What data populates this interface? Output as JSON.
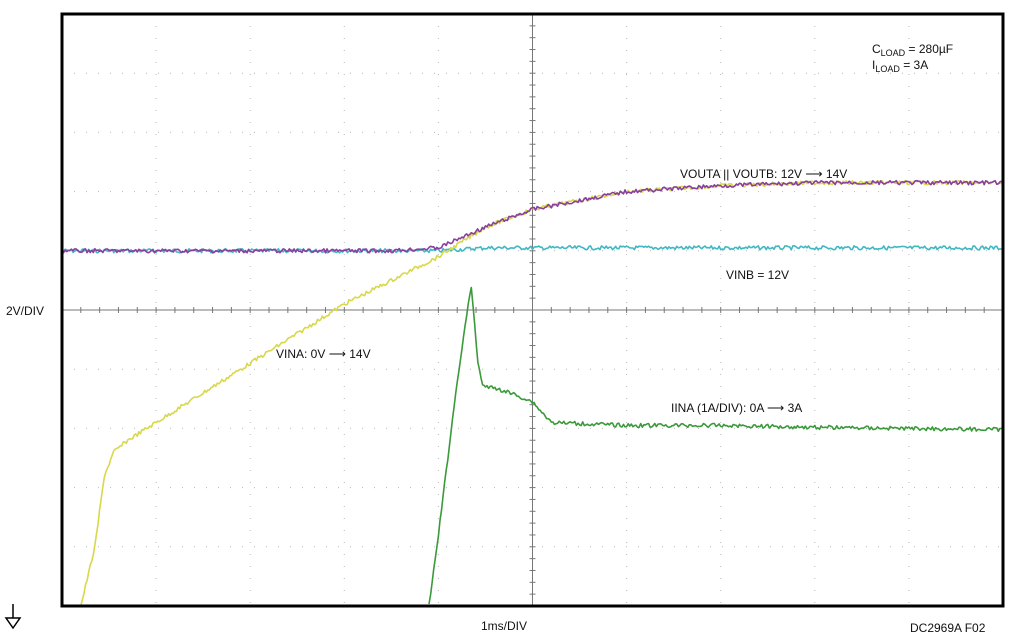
{
  "chart_data": {
    "type": "line",
    "vertical_scale_label": "2V/DIV",
    "horizontal_scale_label": "1ms/DIV",
    "figure_id": "DC2969A F02",
    "grid": true,
    "divisions": {
      "x": 10,
      "y": 10
    },
    "x_unit": "ms",
    "x_range_ms": [
      0,
      10
    ],
    "y_unit_div": "divisions",
    "y_range_div": [
      0,
      10
    ],
    "conditions": {
      "cload": {
        "symbol": "C",
        "sub": "LOAD",
        "value": "= 280µF"
      },
      "iload": {
        "symbol": "I",
        "sub": "LOAD",
        "value": "= 3A"
      }
    },
    "series": [
      {
        "name": "VINB = 12V",
        "color": "#3fb8c4",
        "x": [
          0,
          1,
          2,
          3,
          4,
          4.5,
          5,
          6,
          7,
          8,
          9,
          10
        ],
        "y": [
          6.0,
          6.0,
          6.0,
          6.0,
          6.0,
          6.05,
          6.05,
          6.05,
          6.05,
          6.05,
          6.05,
          6.05
        ]
      },
      {
        "name": "VINA: 0V ⟶ 14V",
        "color": "#d8d84a",
        "x": [
          0.2,
          0.35,
          0.45,
          0.55,
          0.7,
          1,
          1.5,
          2,
          2.5,
          3,
          3.5,
          4,
          4.5,
          5,
          5.5,
          6,
          7,
          8,
          9,
          10
        ],
        "y": [
          0.0,
          1.0,
          2.2,
          2.6,
          2.8,
          3.1,
          3.6,
          4.1,
          4.6,
          5.1,
          5.5,
          5.9,
          6.4,
          6.7,
          6.85,
          7.0,
          7.1,
          7.15,
          7.15,
          7.15
        ]
      },
      {
        "name": "VOUTA || VOUTB: 12V ⟶ 14V",
        "color": "#8a3fa0",
        "x": [
          0,
          1,
          2,
          3,
          3.5,
          4,
          4.5,
          5,
          5.5,
          6,
          7,
          8,
          9,
          10
        ],
        "y": [
          6.0,
          6.0,
          6.0,
          6.0,
          6.0,
          6.05,
          6.4,
          6.7,
          6.85,
          7.0,
          7.1,
          7.15,
          7.15,
          7.15
        ]
      },
      {
        "name": "IINA (1A/DIV): 0A ⟶ 3A",
        "color": "#3a9a3a",
        "x": [
          3.9,
          4.0,
          4.1,
          4.2,
          4.3,
          4.35,
          4.42,
          4.47,
          4.5,
          4.6,
          4.8,
          5.0,
          5.2,
          6,
          7,
          8,
          9,
          10
        ],
        "y": [
          0.0,
          1.2,
          2.5,
          3.8,
          4.9,
          5.4,
          4.1,
          3.75,
          3.7,
          3.68,
          3.58,
          3.45,
          3.1,
          3.05,
          3.05,
          3.02,
          3.0,
          2.98
        ]
      }
    ]
  },
  "trace_labels": {
    "vouta": "VOUTA || VOUTB: 12V ⟶ 14V",
    "vinb": "VINB = 12V",
    "vina": "VINA: 0V ⟶ 14V",
    "iina": "IINA (1A/DIV): 0A ⟶ 3A"
  },
  "colors": {
    "frame": "#000000",
    "grid": "#b8b8b8",
    "center_axis": "#777777"
  },
  "icons": {
    "ground_marker": "ground-arrow-icon"
  }
}
